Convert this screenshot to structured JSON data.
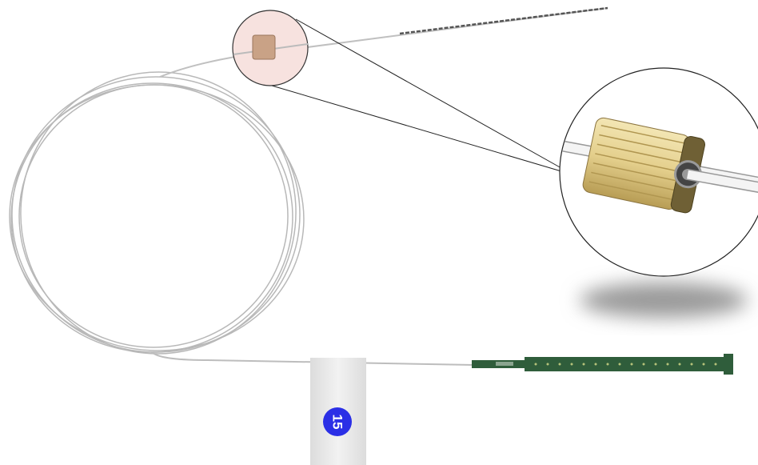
{
  "tag": {
    "number": "15"
  }
}
